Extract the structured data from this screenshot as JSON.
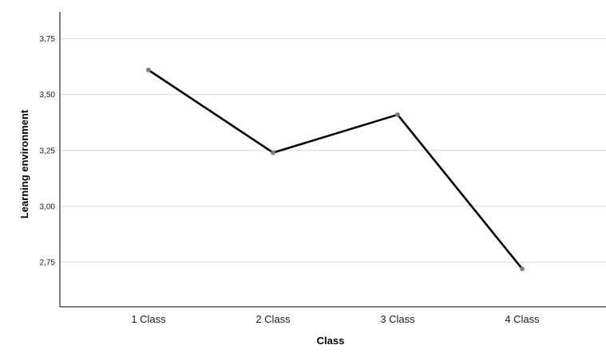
{
  "chart_data": {
    "type": "line",
    "categories": [
      "1 Class",
      "2 Class",
      "3 Class",
      "4 Class"
    ],
    "series": [
      {
        "values": [
          3.61,
          3.24,
          3.41,
          2.72
        ]
      }
    ],
    "xlabel": "Class",
    "ylabel": "Learning environment",
    "ylim": [
      2.55,
      3.87
    ],
    "yticks": [
      2.75,
      3.0,
      3.25,
      3.5,
      3.75
    ],
    "ytick_labels": [
      "2,75",
      "3,00",
      "3,25",
      "3,50",
      "3,75"
    ],
    "grid": true,
    "legend": "none",
    "line_color": "#000000",
    "marker_color": "#7f7f7f",
    "grid_color": "#d9d9d9"
  }
}
